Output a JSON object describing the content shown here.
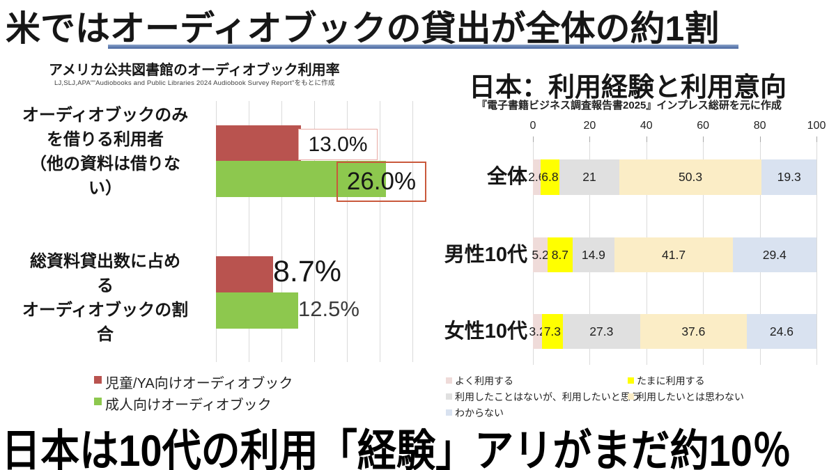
{
  "slide": {
    "top_title": "米ではオーディオブックの貸出が全体の約1割",
    "bottom_title": "日本は10代の利用「経験」アリがまだ約10％",
    "accent_color": "#46659F",
    "background": "#FFFFFF"
  },
  "chart_data": [
    {
      "type": "bar",
      "orientation": "horizontal",
      "title": "アメリカ公共図書館のオーディオブック利用率",
      "source": "LJ,SLJ,APA\"\"Audiobooks and Public Libraries 2024 Audiobook Survey Report\"をもとに作成",
      "categories": [
        "オーディオブックのみを借りる利用者（他の資料は借りない）",
        "総資料貸出数に占めるオーディオブックの割合"
      ],
      "category_lines": [
        [
          "オーディオブックのみ",
          "を借りる利用者",
          "（他の資料は借りな",
          "い）"
        ],
        [
          "総資料貸出数に占め",
          "る",
          "オーディオブックの割",
          "合"
        ]
      ],
      "xlim": [
        0,
        30
      ],
      "gridline_step": 5,
      "grid": true,
      "legend_position": "bottom",
      "series": [
        {
          "name": "児童/YA向けオーディオブック",
          "color": "#B9534F",
          "values": [
            13.0,
            8.7
          ],
          "labels": [
            "13.0%",
            "8.7%"
          ]
        },
        {
          "name": "成人向けオーディオブック",
          "color": "#8DC84E",
          "values": [
            26.0,
            12.5
          ],
          "labels": [
            "26.0%",
            "12.5%"
          ]
        }
      ],
      "callout_border_colors": [
        "#E8ABA4",
        "#C9583B"
      ]
    },
    {
      "type": "bar",
      "stacked": true,
      "orientation": "horizontal",
      "title": "日本：利用経験と利用意向",
      "source": "『電子書籍ビジネス調査報告書2025』インプレス総研を元に作成",
      "categories": [
        "全体",
        "男性10代",
        "女性10代"
      ],
      "x_ticks": [
        0,
        20,
        40,
        60,
        80,
        100
      ],
      "xlim": [
        0,
        100
      ],
      "grid": true,
      "legend_position": "bottom",
      "series": [
        {
          "name": "よく利用する",
          "color": "#EFDBD9",
          "values": [
            2.6,
            5.2,
            3.2
          ]
        },
        {
          "name": "たまに利用する",
          "color": "#FFFF00",
          "values": [
            6.8,
            8.7,
            7.3
          ]
        },
        {
          "name": "利用したことはないが、利用したいと思う",
          "color": "#E0E0E0",
          "values": [
            21,
            14.9,
            27.3
          ]
        },
        {
          "name": "利用したいとは思わない",
          "color": "#FBEDC6",
          "values": [
            50.3,
            41.7,
            37.6
          ]
        },
        {
          "name": "わからない",
          "color": "#D9E2F0",
          "values": [
            19.3,
            29.4,
            24.6
          ]
        }
      ]
    }
  ]
}
